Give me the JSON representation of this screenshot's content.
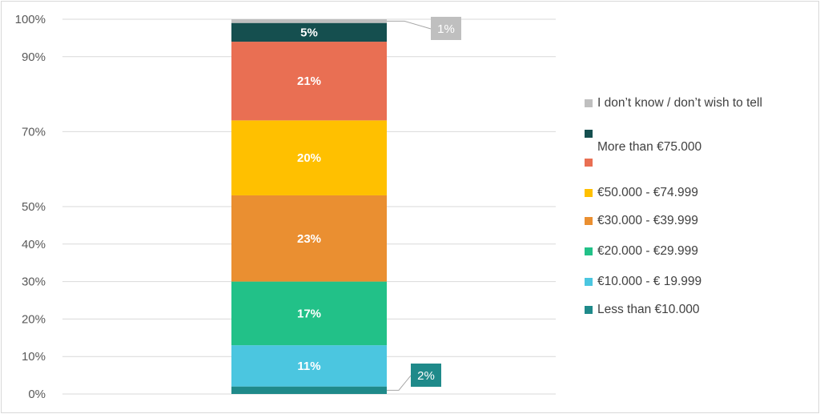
{
  "chart_data": {
    "type": "bar",
    "stacked": true,
    "categories": [
      ""
    ],
    "ylim": [
      0,
      100
    ],
    "y_ticks": [
      "0%",
      "10%",
      "20%",
      "30%",
      "40%",
      "50%",
      "70%",
      "90%",
      "100%"
    ],
    "grid": true,
    "legend_position": "right",
    "series": [
      {
        "name": "Less than €10.000",
        "value": 2,
        "label": "2%",
        "color": "#1f8a8a",
        "label_style": "callout"
      },
      {
        "name": "€10.000 - € 19.999",
        "value": 11,
        "label": "11%",
        "color": "#4bc6e0",
        "label_style": "inside"
      },
      {
        "name": "€20.000 - €29.999",
        "value": 17,
        "label": "17%",
        "color": "#22c188",
        "label_style": "inside"
      },
      {
        "name": "€30.000 - €39.999",
        "value": 23,
        "label": "23%",
        "color": "#ea8f31",
        "label_style": "inside"
      },
      {
        "name": "€50.000 - €74.999",
        "value": 20,
        "label": "20%",
        "color": "#ffc000",
        "label_style": "inside"
      },
      {
        "name": "",
        "value": 21,
        "label": "21%",
        "color": "#e96f53",
        "label_style": "inside"
      },
      {
        "name": "More than €75.000",
        "value": 5,
        "label": "5%",
        "color": "#154f4f",
        "label_style": "inside"
      },
      {
        "name": "I don’t know  / don’t wish to tell",
        "value": 1,
        "label": "1%",
        "color": "#bfbfbf",
        "label_style": "callout"
      }
    ]
  }
}
